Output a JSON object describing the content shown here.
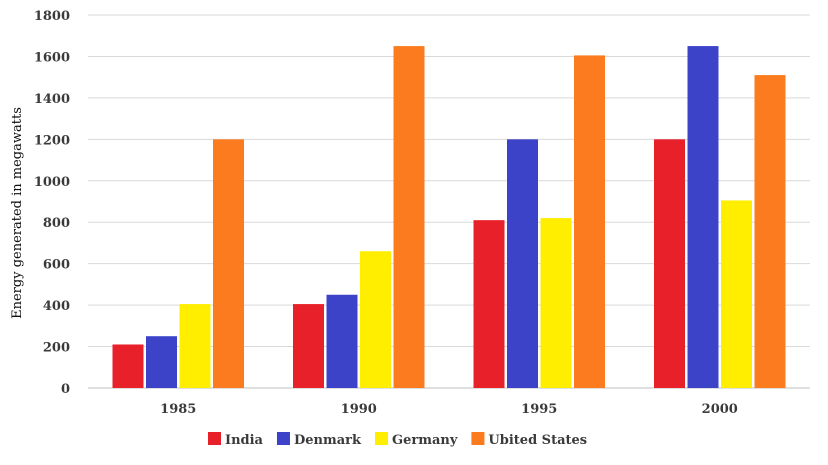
{
  "chart_data": {
    "type": "bar",
    "title": "",
    "xlabel": "",
    "ylabel": "Energy generated in megawatts",
    "categories": [
      "1985",
      "1990",
      "1995",
      "2000"
    ],
    "series": [
      {
        "name": "India",
        "color": "#e8202a",
        "values": [
          210,
          405,
          810,
          1200
        ]
      },
      {
        "name": "Denmark",
        "color": "#3d43c9",
        "values": [
          250,
          450,
          1200,
          1650
        ]
      },
      {
        "name": "Germany",
        "color": "#ffee00",
        "values": [
          405,
          660,
          820,
          905
        ]
      },
      {
        "name": "Ubited States",
        "color": "#fb7b1e",
        "values": [
          1200,
          1650,
          1605,
          1510
        ]
      }
    ],
    "ylim": [
      0,
      1800
    ],
    "yticks": [
      "0",
      "200",
      "400",
      "600",
      "800",
      "1000",
      "1200",
      "1400",
      "1600",
      "1800"
    ],
    "grid": true,
    "legend_position": "bottom"
  }
}
